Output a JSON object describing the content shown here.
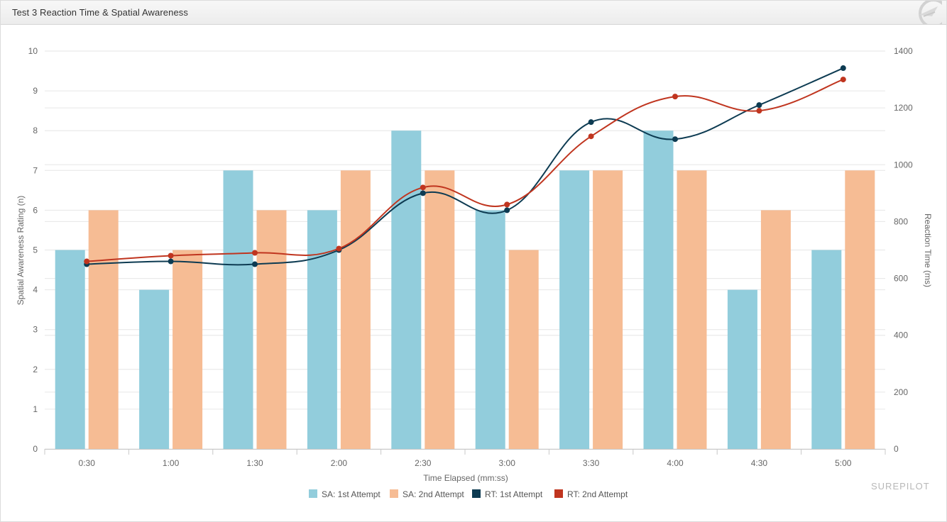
{
  "panel": {
    "title": "Test 3 Reaction Time & Spatial Awareness",
    "header_icon": "surepilot-plane-icon"
  },
  "chart_data": {
    "type": "bar",
    "categories": [
      "0:30",
      "1:00",
      "1:30",
      "2:00",
      "2:30",
      "3:00",
      "3:30",
      "4:00",
      "4:30",
      "5:00"
    ],
    "xlabel": "Time Elapsed (mm:ss)",
    "ylabel": "Spatial Awareness Rating (n)",
    "y2label": "Reaction Time (ms)",
    "ylim": [
      0,
      10
    ],
    "y2lim": [
      0,
      1400
    ],
    "yticks": [
      0,
      1,
      2,
      3,
      4,
      5,
      6,
      7,
      8,
      9,
      10
    ],
    "y2ticks": [
      0,
      200,
      400,
      600,
      800,
      1000,
      1200,
      1400
    ],
    "grid": true,
    "legend_position": "bottom-center",
    "bar_series": [
      {
        "name": "SA: 1st Attempt",
        "color": "#92cddc",
        "values": [
          5,
          4,
          7,
          6,
          8,
          6,
          7,
          8,
          4,
          5
        ]
      },
      {
        "name": "SA: 2nd Attempt",
        "color": "#f6bc94",
        "values": [
          6,
          5,
          6,
          7,
          7,
          5,
          7,
          7,
          6,
          7
        ]
      }
    ],
    "line_series": [
      {
        "name": "RT: 1st Attempt",
        "color": "#0d3b52",
        "axis": "right",
        "values": [
          650,
          660,
          650,
          700,
          900,
          840,
          1150,
          1090,
          1210,
          1340
        ]
      },
      {
        "name": "RT: 2nd Attempt",
        "color": "#c0351f",
        "axis": "right",
        "values": [
          660,
          680,
          690,
          705,
          920,
          860,
          1100,
          1240,
          1190,
          1300
        ]
      }
    ],
    "watermark": "SUREPILOT"
  }
}
